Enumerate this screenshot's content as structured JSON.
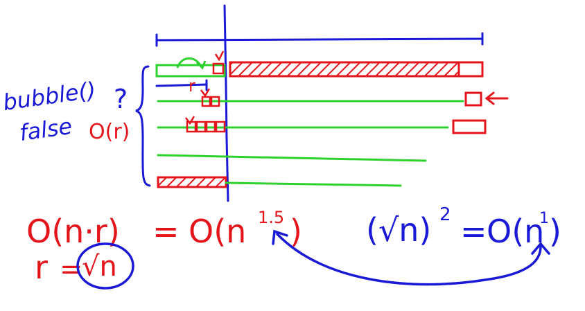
{
  "colors": {
    "blue": "#1a1ad6",
    "red": "#e4141b",
    "green": "#2fd12f",
    "background": "#ffffff"
  },
  "labels": {
    "bubble": "bubble()",
    "false": "false",
    "question": "?",
    "o_r": "O(r)",
    "r_small": "r",
    "eq_left_lhs": "O(n·r)",
    "eq_equals": "=",
    "eq_left_rhs_base": "O(n",
    "eq_left_rhs_exp": "1.5",
    "eq_left_rhs_close": ")",
    "r_assign_lhs": "r",
    "r_assign_eq": "=",
    "r_assign_rhs": "√n",
    "sqrt_term": "(√n)",
    "sqrt_exp": "2",
    "eq_right_equals": "=",
    "eq_right_rhs_base": "O(n",
    "eq_right_rhs_exp": "1",
    "eq_right_rhs_close": ")"
  }
}
